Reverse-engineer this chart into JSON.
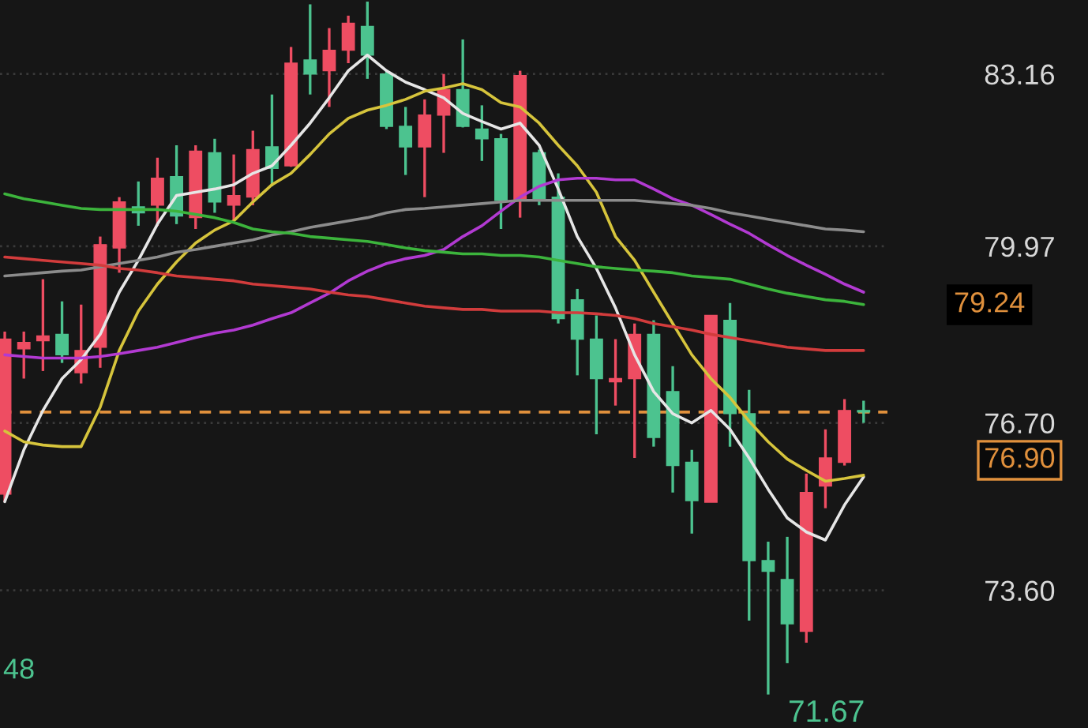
{
  "chart_data": {
    "type": "candlestick",
    "categories": [
      null,
      null,
      null,
      null,
      null,
      null,
      null,
      null,
      null,
      null,
      null,
      null,
      null,
      null,
      null,
      null,
      null,
      null,
      null,
      null,
      null,
      null,
      null,
      null,
      null,
      null,
      null,
      null,
      null,
      null,
      null,
      null,
      null,
      null,
      null,
      null,
      null,
      null,
      null,
      null,
      null,
      null,
      null,
      null,
      null,
      null
    ],
    "ohlc": [
      [
        75.38,
        78.39,
        75.24,
        78.25
      ],
      [
        78.07,
        78.39,
        77.52,
        78.19
      ],
      [
        78.22,
        79.36,
        77.66,
        78.31
      ],
      [
        78.34,
        78.95,
        77.81,
        77.96
      ],
      [
        77.63,
        78.89,
        77.43,
        78.04
      ],
      [
        78.1,
        80.15,
        77.72,
        80.0
      ],
      [
        79.94,
        80.88,
        79.48,
        80.79
      ],
      [
        80.7,
        81.17,
        80.35,
        80.59
      ],
      [
        80.73,
        81.61,
        80.35,
        81.23
      ],
      [
        81.26,
        81.84,
        80.38,
        80.53
      ],
      [
        80.5,
        81.84,
        80.29,
        81.73
      ],
      [
        81.7,
        81.96,
        80.59,
        80.79
      ],
      [
        80.73,
        81.67,
        80.44,
        80.91
      ],
      [
        80.88,
        82.11,
        80.73,
        81.76
      ],
      [
        81.81,
        82.78,
        81.08,
        81.41
      ],
      [
        81.46,
        83.66,
        81.44,
        83.36
      ],
      [
        83.42,
        84.45,
        82.78,
        83.16
      ],
      [
        83.22,
        84.01,
        82.55,
        83.6
      ],
      [
        83.6,
        84.24,
        83.36,
        84.1
      ],
      [
        84.04,
        84.5,
        83.07,
        83.51
      ],
      [
        83.16,
        83.22,
        82.14,
        82.19
      ],
      [
        82.19,
        82.55,
        81.29,
        81.81
      ],
      [
        81.81,
        82.69,
        80.88,
        82.4
      ],
      [
        82.4,
        83.16,
        81.7,
        82.87
      ],
      [
        82.87,
        83.8,
        82.17,
        82.19
      ],
      [
        82.14,
        82.58,
        81.55,
        81.96
      ],
      [
        81.96,
        82.05,
        80.29,
        80.82
      ],
      [
        80.82,
        83.22,
        80.5,
        83.13
      ],
      [
        81.7,
        81.76,
        80.73,
        80.82
      ],
      [
        80.88,
        81.32,
        78.54,
        78.63
      ],
      [
        78.98,
        79.18,
        77.58,
        78.25
      ],
      [
        78.25,
        78.69,
        76.49,
        77.52
      ],
      [
        77.46,
        78.25,
        77.02,
        77.52
      ],
      [
        77.52,
        78.54,
        76.05,
        78.34
      ],
      [
        78.34,
        78.6,
        76.26,
        76.43
      ],
      [
        77.28,
        77.75,
        75.41,
        75.91
      ],
      [
        75.97,
        76.2,
        74.65,
        75.26
      ],
      [
        75.23,
        78.69,
        75.23,
        78.69
      ],
      [
        78.6,
        78.92,
        76.26,
        76.87
      ],
      [
        76.87,
        77.31,
        73.04,
        74.15
      ],
      [
        74.15,
        74.5,
        71.67,
        73.95
      ],
      [
        73.8,
        74.59,
        72.25,
        72.98
      ],
      [
        72.84,
        75.76,
        72.63,
        75.41
      ],
      [
        75.53,
        76.58,
        75.12,
        76.05
      ],
      [
        75.97,
        77.14,
        75.91,
        76.93
      ],
      [
        76.93,
        77.11,
        76.7,
        76.9
      ]
    ],
    "colors": [
      "#ee4d62",
      "#ee4d62",
      "#ee4d62",
      "#4cc38f",
      "#ee4d62",
      "#ee4d62",
      "#ee4d62",
      "#4cc38f",
      "#ee4d62",
      "#4cc38f",
      "#ee4d62",
      "#4cc38f",
      "#ee4d62",
      "#ee4d62",
      "#4cc38f",
      "#ee4d62",
      "#4cc38f",
      "#ee4d62",
      "#ee4d62",
      "#4cc38f",
      "#4cc38f",
      "#4cc38f",
      "#ee4d62",
      "#ee4d62",
      "#4cc38f",
      "#4cc38f",
      "#4cc38f",
      "#ee4d62",
      "#4cc38f",
      "#4cc38f",
      "#4cc38f",
      "#4cc38f",
      "#ee4d62",
      "#ee4d62",
      "#4cc38f",
      "#4cc38f",
      "#4cc38f",
      "#ee4d62",
      "#4cc38f",
      "#4cc38f",
      "#4cc38f",
      "#4cc38f",
      "#ee4d62",
      "#ee4d62",
      "#ee4d62",
      "#4cc38f"
    ],
    "series": [
      {
        "type": "line",
        "color": "#e6e6e6",
        "values": [
          75.24,
          76.2,
          76.93,
          77.52,
          77.87,
          78.34,
          79.12,
          79.71,
          80.38,
          80.91,
          80.97,
          81.03,
          81.11,
          81.32,
          81.46,
          81.84,
          82.25,
          82.72,
          83.22,
          83.51,
          83.22,
          83.01,
          82.87,
          82.72,
          82.43,
          82.28,
          82.14,
          82.25,
          81.84,
          81.03,
          80.15,
          79.56,
          78.83,
          77.96,
          77.28,
          76.87,
          76.7,
          76.93,
          76.58,
          76.05,
          75.47,
          74.94,
          74.68,
          74.53,
          75.18,
          75.7
        ]
      },
      {
        "type": "line",
        "color": "#d6c43c",
        "values": [
          76.55,
          76.35,
          76.29,
          76.26,
          76.26,
          76.99,
          78.04,
          78.77,
          79.27,
          79.68,
          80.03,
          80.27,
          80.44,
          80.79,
          81.11,
          81.32,
          81.67,
          82.05,
          82.34,
          82.49,
          82.58,
          82.69,
          82.84,
          82.9,
          82.98,
          82.87,
          82.63,
          82.55,
          82.25,
          81.84,
          81.46,
          80.97,
          80.15,
          79.71,
          79.12,
          78.54,
          77.96,
          77.52,
          77.17,
          76.73,
          76.35,
          76.03,
          75.82,
          75.62,
          75.67,
          75.73
        ]
      },
      {
        "type": "line",
        "color": "#b23ad2",
        "values": [
          77.96,
          77.93,
          77.9,
          77.9,
          77.9,
          77.93,
          77.98,
          78.04,
          78.1,
          78.19,
          78.28,
          78.36,
          78.42,
          78.51,
          78.63,
          78.74,
          78.92,
          79.1,
          79.33,
          79.51,
          79.65,
          79.74,
          79.8,
          79.91,
          80.15,
          80.35,
          80.62,
          80.88,
          81.08,
          81.2,
          81.23,
          81.23,
          81.2,
          81.2,
          81.03,
          80.85,
          80.73,
          80.56,
          80.38,
          80.21,
          80.0,
          79.8,
          79.62,
          79.45,
          79.27,
          79.12
        ]
      },
      {
        "type": "line",
        "color": "#8c8c8c",
        "values": [
          79.42,
          79.45,
          79.48,
          79.51,
          79.53,
          79.59,
          79.65,
          79.71,
          79.77,
          79.86,
          79.91,
          79.97,
          80.03,
          80.09,
          80.18,
          80.24,
          80.32,
          80.38,
          80.44,
          80.5,
          80.59,
          80.65,
          80.67,
          80.7,
          80.73,
          80.76,
          80.79,
          80.82,
          80.82,
          80.82,
          80.82,
          80.82,
          80.82,
          80.82,
          80.79,
          80.76,
          80.73,
          80.67,
          80.59,
          80.53,
          80.47,
          80.41,
          80.35,
          80.29,
          80.27,
          80.24
        ]
      },
      {
        "type": "line",
        "color": "#3cb43c",
        "values": [
          80.94,
          80.85,
          80.79,
          80.73,
          80.67,
          80.65,
          80.65,
          80.65,
          80.65,
          80.62,
          80.56,
          80.5,
          80.41,
          80.29,
          80.24,
          80.21,
          80.15,
          80.12,
          80.09,
          80.06,
          80.0,
          79.94,
          79.89,
          79.86,
          79.83,
          79.83,
          79.8,
          79.8,
          79.77,
          79.71,
          79.65,
          79.59,
          79.56,
          79.53,
          79.51,
          79.48,
          79.42,
          79.39,
          79.36,
          79.27,
          79.18,
          79.1,
          79.04,
          78.98,
          78.95,
          78.89
        ]
      },
      {
        "type": "line",
        "color": "#d23c3c",
        "values": [
          79.77,
          79.74,
          79.71,
          79.68,
          79.65,
          79.62,
          79.56,
          79.53,
          79.48,
          79.42,
          79.39,
          79.36,
          79.33,
          79.27,
          79.24,
          79.21,
          79.18,
          79.12,
          79.07,
          79.04,
          78.98,
          78.92,
          78.86,
          78.83,
          78.8,
          78.8,
          78.77,
          78.77,
          78.77,
          78.74,
          78.74,
          78.72,
          78.69,
          78.63,
          78.54,
          78.48,
          78.42,
          78.34,
          78.28,
          78.22,
          78.16,
          78.1,
          78.07,
          78.04,
          78.04,
          78.04
        ]
      }
    ],
    "ylim": [
      71.05,
      84.53
    ],
    "yticks": [
      {
        "value": 73.6,
        "label": "73.60"
      },
      {
        "value": 76.7,
        "label": "76.70"
      },
      {
        "value": 79.97,
        "label": "79.97"
      },
      {
        "value": 83.16,
        "label": "83.16"
      }
    ],
    "grid": "y",
    "tick_labels": "y",
    "ref_lines": [
      {
        "axis": "y",
        "value": 76.9,
        "label": "76.90",
        "color": "#e0903c",
        "line_style": "dashed"
      }
    ],
    "annotations": [
      "79.24",
      "71.67",
      "48"
    ]
  }
}
